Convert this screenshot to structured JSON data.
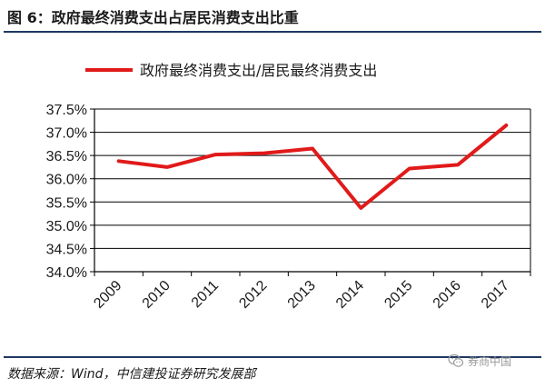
{
  "figure": {
    "title": "图 6：政府最终消费支出占居民消费支出比重",
    "source": "数据来源：Wind，中信建投证券研究发展部",
    "watermark": "券商中国"
  },
  "colors": {
    "series": "#e11a1a",
    "rule": "#1f3864",
    "axis": "#000000",
    "grid": "#000000"
  },
  "chart_data": {
    "type": "line",
    "title": "",
    "xlabel": "",
    "ylabel": "",
    "categories": [
      "2009",
      "2010",
      "2011",
      "2012",
      "2013",
      "2014",
      "2015",
      "2016",
      "2017"
    ],
    "series": [
      {
        "name": "政府最终消费支出/居民最终消费支出",
        "values": [
          36.38,
          36.25,
          36.52,
          36.55,
          36.65,
          35.37,
          36.22,
          36.3,
          37.15
        ]
      }
    ],
    "ylim": [
      34.0,
      37.5
    ],
    "yticks": [
      "34.0%",
      "34.5%",
      "35.0%",
      "35.5%",
      "36.0%",
      "36.5%",
      "37.0%",
      "37.5%"
    ],
    "ytick_values": [
      34.0,
      34.5,
      35.0,
      35.5,
      36.0,
      36.5,
      37.0,
      37.5
    ],
    "grid": true,
    "legend_position": "top"
  }
}
